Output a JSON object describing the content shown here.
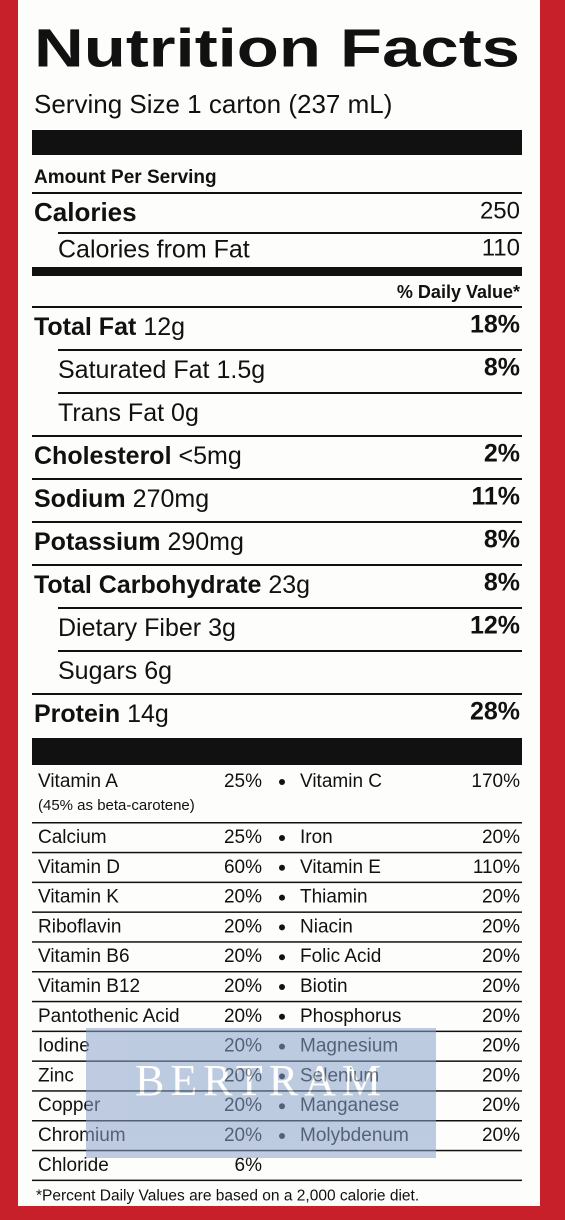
{
  "title": "Nutrition Facts",
  "serving_size": "Serving Size 1 carton (237 mL)",
  "amount_per_serving": "Amount Per Serving",
  "calories": {
    "label": "Calories",
    "value": "250"
  },
  "calories_from_fat": {
    "label": "Calories from Fat",
    "value": "110"
  },
  "daily_value_header": "% Daily Value*",
  "nutrients": [
    {
      "name": "Total Fat",
      "amount": "12g",
      "dv": "18%",
      "subs": [
        {
          "name": "Saturated Fat",
          "amount": "1.5g",
          "dv": "8%"
        },
        {
          "name": "Trans Fat",
          "amount": "0g"
        }
      ]
    },
    {
      "name": "Cholesterol",
      "amount": "<5mg",
      "dv": "2%"
    },
    {
      "name": "Sodium",
      "amount": "270mg",
      "dv": "11%"
    },
    {
      "name": "Potassium",
      "amount": "290mg",
      "dv": "8%"
    },
    {
      "name": "Total Carbohydrate",
      "amount": "23g",
      "dv": "8%",
      "subs": [
        {
          "name": "Dietary Fiber",
          "amount": "3g",
          "dv": "12%"
        },
        {
          "name": "Sugars",
          "amount": "6g"
        }
      ]
    },
    {
      "name": "Protein",
      "amount": "14g",
      "dv": "28%"
    }
  ],
  "vitamins": [
    [
      {
        "name": "Vitamin A",
        "dv": "25%",
        "note": "(45% as beta-carotene)"
      },
      {
        "name": "Vitamin C",
        "dv": "170%"
      }
    ],
    [
      {
        "name": "Calcium",
        "dv": "25%"
      },
      {
        "name": "Iron",
        "dv": "20%"
      }
    ],
    [
      {
        "name": "Vitamin D",
        "dv": "60%"
      },
      {
        "name": "Vitamin E",
        "dv": "110%"
      }
    ],
    [
      {
        "name": "Vitamin K",
        "dv": "20%"
      },
      {
        "name": "Thiamin",
        "dv": "20%"
      }
    ],
    [
      {
        "name": "Riboflavin",
        "dv": "20%"
      },
      {
        "name": "Niacin",
        "dv": "20%"
      }
    ],
    [
      {
        "name": "Vitamin B6",
        "dv": "20%"
      },
      {
        "name": "Folic Acid",
        "dv": "20%"
      }
    ],
    [
      {
        "name": "Vitamin B12",
        "dv": "20%"
      },
      {
        "name": "Biotin",
        "dv": "20%"
      }
    ],
    [
      {
        "name": "Pantothenic Acid",
        "dv": "20%"
      },
      {
        "name": "Phosphorus",
        "dv": "20%"
      }
    ],
    [
      {
        "name": "Iodine",
        "dv": "20%"
      },
      {
        "name": "Magnesium",
        "dv": "20%"
      }
    ],
    [
      {
        "name": "Zinc",
        "dv": "20%"
      },
      {
        "name": "Selenium",
        "dv": "20%"
      }
    ],
    [
      {
        "name": "Copper",
        "dv": "20%"
      },
      {
        "name": "Manganese",
        "dv": "20%"
      }
    ],
    [
      {
        "name": "Chromium",
        "dv": "20%"
      },
      {
        "name": "Molybdenum",
        "dv": "20%"
      }
    ],
    [
      {
        "name": "Chloride",
        "dv": "6%"
      }
    ]
  ],
  "footnote": "*Percent Daily Values are based on a 2,000 calorie diet.",
  "watermark": "BERTRAM"
}
